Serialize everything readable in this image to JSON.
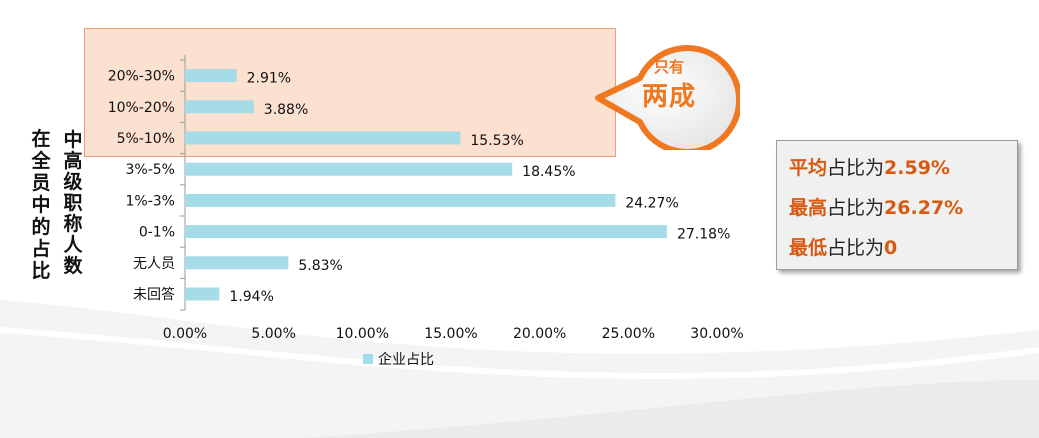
{
  "callout": {
    "line1": "只有",
    "line2": "两成"
  },
  "axis": {
    "ylabel_outer": "在全员中的占比",
    "ylabel_inner": "中高级职称人数"
  },
  "stats": [
    {
      "key": "平均",
      "mid": "占比为",
      "val": "2.59%"
    },
    {
      "key": "最高",
      "mid": "占比为",
      "val": "26.27%"
    },
    {
      "key": "最低",
      "mid": "占比为",
      "val": "0"
    }
  ],
  "colors": {
    "bar": "#a6dce8",
    "accent": "#f07820",
    "stat_accent": "#d85a10"
  },
  "chart_data": {
    "type": "bar",
    "orientation": "horizontal",
    "categories": [
      "20%-30%",
      "10%-20%",
      "5%-10%",
      "3%-5%",
      "1%-3%",
      "0-1%",
      "无人员",
      "未回答"
    ],
    "series": [
      {
        "name": "企业占比",
        "values": [
          2.91,
          3.88,
          15.53,
          18.45,
          24.27,
          27.18,
          5.83,
          1.94
        ]
      }
    ],
    "data_labels": [
      "2.91%",
      "3.88%",
      "15.53%",
      "18.45%",
      "24.27%",
      "27.18%",
      "5.83%",
      "1.94%"
    ],
    "xlim": [
      0,
      30
    ],
    "xticks": [
      0,
      5,
      10,
      15,
      20,
      25,
      30
    ],
    "xtick_labels": [
      "0.00%",
      "5.00%",
      "10.00%",
      "15.00%",
      "20.00%",
      "25.00%",
      "30.00%"
    ],
    "legend": "bottom",
    "grid": false
  }
}
